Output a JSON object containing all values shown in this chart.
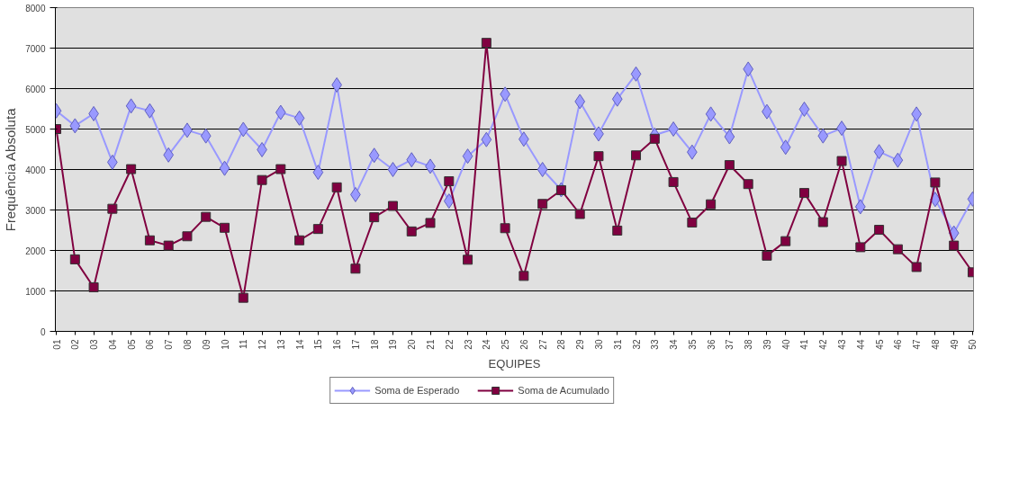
{
  "chart_data": {
    "type": "line",
    "xlabel": "EQUIPES",
    "ylabel": "Frequência Absoluta",
    "categories": [
      "01",
      "02",
      "03",
      "04",
      "05",
      "06",
      "07",
      "08",
      "09",
      "10",
      "11",
      "12",
      "13",
      "14",
      "15",
      "16",
      "17",
      "18",
      "19",
      "20",
      "21",
      "22",
      "23",
      "24",
      "25",
      "26",
      "27",
      "28",
      "29",
      "30",
      "31",
      "32",
      "33",
      "34",
      "35",
      "36",
      "37",
      "38",
      "39",
      "40",
      "41",
      "42",
      "43",
      "44",
      "45",
      "46",
      "47",
      "48",
      "49",
      "50"
    ],
    "series": [
      {
        "name": "Soma de Esperado",
        "color": "#9999ff",
        "marker": "diamond",
        "values": [
          5450,
          5080,
          5380,
          4180,
          5570,
          5450,
          4360,
          4970,
          4830,
          4030,
          4990,
          4490,
          5410,
          5270,
          3930,
          6090,
          3380,
          4350,
          4000,
          4240,
          4080,
          3220,
          4330,
          4740,
          5860,
          4750,
          4000,
          3500,
          5680,
          4880,
          5740,
          6360,
          4850,
          5000,
          4430,
          5370,
          4810,
          6480,
          5430,
          4550,
          5490,
          4830,
          5020,
          3080,
          4440,
          4230,
          5370,
          3260,
          2430,
          3270
        ]
      },
      {
        "name": "Soma de Acumulado",
        "color": "#800040",
        "marker": "square",
        "values": [
          5000,
          1780,
          1090,
          3030,
          4010,
          2250,
          2120,
          2350,
          2830,
          2560,
          830,
          3740,
          4010,
          2250,
          2530,
          3560,
          1550,
          2820,
          3100,
          2470,
          2680,
          3710,
          1770,
          7130,
          2550,
          1370,
          3150,
          3490,
          2900,
          4330,
          2490,
          4350,
          4760,
          3690,
          2690,
          3140,
          4110,
          3640,
          1870,
          2230,
          3420,
          2700,
          4210,
          2080,
          2510,
          2030,
          1590,
          3680,
          2120,
          1460
        ]
      }
    ],
    "ylim": [
      0,
      8000
    ],
    "yticks": [
      0,
      1000,
      2000,
      3000,
      4000,
      5000,
      6000,
      7000,
      8000
    ],
    "grid": "y",
    "legend": "bottom",
    "line_style": "solid"
  }
}
